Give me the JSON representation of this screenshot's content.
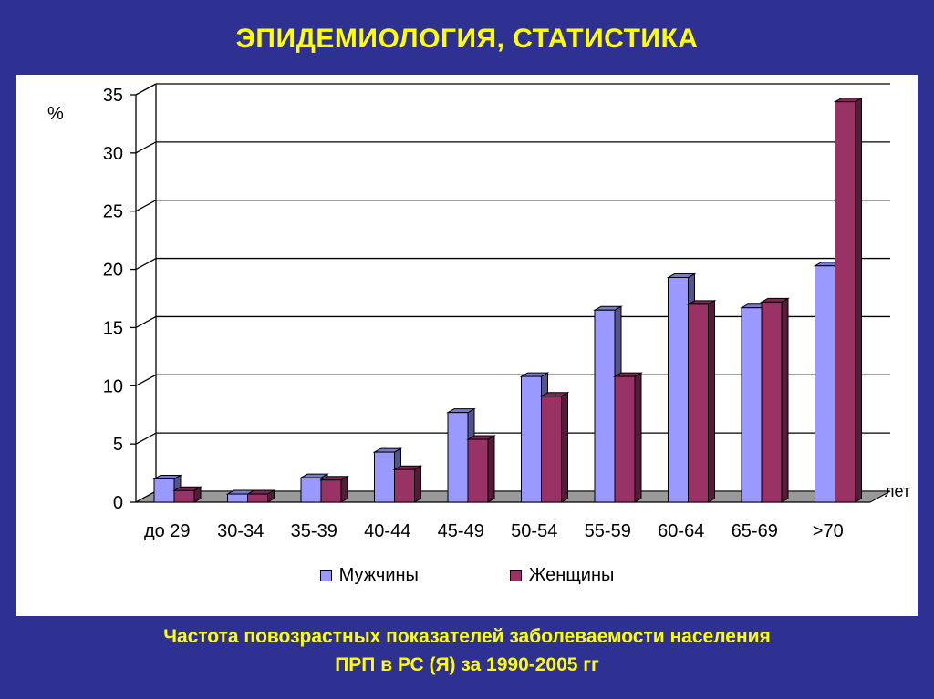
{
  "slide": {
    "title": "ЭПИДЕМИОЛОГИЯ, СТАТИСТИКА",
    "caption_line1": "Частота повозрастных показателей заболеваемости населения",
    "caption_line2": "ПРП в РС (Я) за 1990-2005 гг"
  },
  "chart_data": {
    "type": "bar",
    "title": "",
    "ylabel": "%",
    "xlabel": "лет",
    "ylim": [
      0,
      35
    ],
    "yticks": [
      0,
      5,
      10,
      15,
      20,
      25,
      30,
      35
    ],
    "grid": true,
    "legend_position": "bottom",
    "categories": [
      "до 29",
      "30-34",
      "35-39",
      "40-44",
      "45-49",
      "50-54",
      "55-59",
      "60-64",
      "65-69",
      ">70"
    ],
    "series": [
      {
        "name": "Мужчины",
        "color": "#9999ff",
        "values": [
          2.0,
          0.7,
          2.1,
          4.3,
          7.7,
          10.8,
          16.5,
          19.3,
          16.7,
          20.3
        ]
      },
      {
        "name": "Женщины",
        "color": "#993366",
        "values": [
          1.0,
          0.7,
          1.9,
          2.8,
          5.4,
          9.1,
          10.8,
          17.0,
          17.2,
          34.4
        ]
      }
    ]
  }
}
